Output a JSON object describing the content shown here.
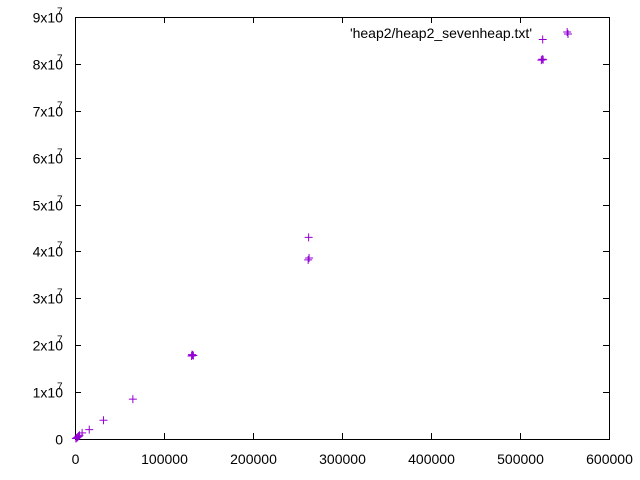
{
  "chart_data": {
    "type": "scatter",
    "title": "",
    "xlabel": "",
    "ylabel": "",
    "xlim": [
      0,
      600000
    ],
    "ylim": [
      0,
      90000000
    ],
    "x_ticks": [
      0,
      100000,
      200000,
      300000,
      400000,
      500000,
      600000
    ],
    "x_tick_labels": [
      "0",
      "100000",
      "200000",
      "300000",
      "400000",
      "500000",
      "600000"
    ],
    "y_ticks": [
      0,
      10000000,
      20000000,
      30000000,
      40000000,
      50000000,
      60000000,
      70000000,
      80000000,
      90000000
    ],
    "y_tick_labels": [
      {
        "base": "0",
        "exp": ""
      },
      {
        "base": "1x10",
        "exp": "7"
      },
      {
        "base": "2x10",
        "exp": "7"
      },
      {
        "base": "3x10",
        "exp": "7"
      },
      {
        "base": "4x10",
        "exp": "7"
      },
      {
        "base": "5x10",
        "exp": "7"
      },
      {
        "base": "6x10",
        "exp": "7"
      },
      {
        "base": "7x10",
        "exp": "7"
      },
      {
        "base": "8x10",
        "exp": "7"
      },
      {
        "base": "9x10",
        "exp": "7"
      }
    ],
    "grid": false,
    "legend_position": "top-right",
    "series": [
      {
        "name": "'heap2/heap2_sevenheap.txt'",
        "color": "#9400d3",
        "marker": "plus",
        "points": [
          [
            1000,
            100000
          ],
          [
            2000,
            250000
          ],
          [
            3000,
            400000
          ],
          [
            4000,
            600000
          ],
          [
            5000,
            800000
          ],
          [
            8000,
            1300000
          ],
          [
            16000,
            2000000
          ],
          [
            32000,
            4000000
          ],
          [
            65000,
            8500000
          ],
          [
            131000,
            17700000
          ],
          [
            132000,
            17900000
          ],
          [
            133000,
            17800000
          ],
          [
            131500,
            18000000
          ],
          [
            262000,
            38200000
          ],
          [
            263000,
            38600000
          ],
          [
            262500,
            43000000
          ],
          [
            524000,
            80800000
          ],
          [
            525000,
            81000000
          ],
          [
            526000,
            80900000
          ],
          [
            525500,
            85200000
          ],
          [
            553000,
            86800000
          ]
        ]
      }
    ]
  }
}
